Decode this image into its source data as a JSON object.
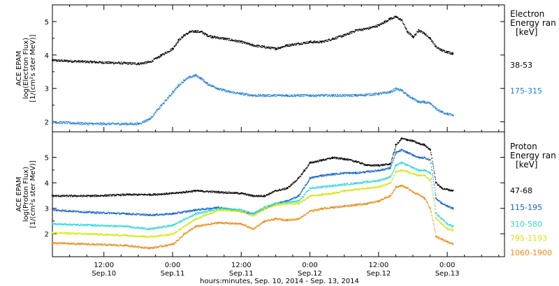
{
  "colors": {
    "c38_53": "#000000",
    "c175_315": "#1f7fd6",
    "c47_68": "#000000",
    "c115_195": "#1060cc",
    "c310_580": "#30d8d8",
    "c795_1193": "#d4e810",
    "c1060_1900": "#ee8a14"
  },
  "x_axis": {
    "label": "hours:minutes, Sep. 10, 2014 - Sep. 13, 2014",
    "ticks": [
      {
        "t": 12,
        "time": "12:00",
        "date": "Sep.10"
      },
      {
        "t": 24,
        "time": "0:00",
        "date": "Sep.11"
      },
      {
        "t": 36,
        "time": "12:00",
        "date": "Sep.11"
      },
      {
        "t": 48,
        "time": "0:00",
        "date": "Sep.12"
      },
      {
        "t": 60,
        "time": "12:00",
        "date": "Sep.12"
      },
      {
        "t": 72,
        "time": "0:00",
        "date": "Sep.13"
      }
    ]
  },
  "chart_data": [
    {
      "type": "scatter",
      "xlim": [
        3,
        82
      ],
      "ylim": [
        1.7,
        5.5
      ],
      "yticks": [
        2,
        3,
        4,
        5
      ],
      "ylabel": [
        "ACE EPAM",
        "log(Electron Flux)",
        "[1/(cm²s ster MeV)]"
      ],
      "legend_title": [
        "Electron",
        "Energy ran",
        "[keV]"
      ],
      "series": [
        {
          "name": "38-53",
          "color_key": "c38_53",
          "x": [
            3,
            10,
            18,
            20,
            22,
            24,
            25,
            26,
            27,
            28,
            29,
            30,
            31,
            33,
            36,
            38,
            40,
            42,
            44,
            46,
            48,
            50,
            52,
            54,
            56,
            58,
            60,
            61,
            62,
            63,
            64,
            65,
            66,
            67,
            68,
            69,
            70,
            71,
            72,
            73
          ],
          "y": [
            3.85,
            3.8,
            3.75,
            3.8,
            4.0,
            4.2,
            4.45,
            4.6,
            4.7,
            4.72,
            4.7,
            4.6,
            4.55,
            4.5,
            4.4,
            4.3,
            4.25,
            4.2,
            4.3,
            4.35,
            4.4,
            4.4,
            4.5,
            4.6,
            4.75,
            4.8,
            4.9,
            5.0,
            5.1,
            5.15,
            5.05,
            4.7,
            4.55,
            4.75,
            4.65,
            4.5,
            4.25,
            4.15,
            4.1,
            4.05
          ]
        },
        {
          "name": "175-315",
          "color_key": "c175_315",
          "x": [
            3,
            10,
            18,
            20,
            22,
            24,
            25,
            26,
            27,
            28,
            29,
            30,
            32,
            34,
            36,
            38,
            40,
            44,
            48,
            52,
            56,
            60,
            62,
            63,
            64,
            65,
            66,
            67,
            68,
            69,
            70,
            71,
            72,
            73
          ],
          "y": [
            2.0,
            1.95,
            1.95,
            2.1,
            2.5,
            2.9,
            3.1,
            3.25,
            3.35,
            3.4,
            3.3,
            3.15,
            3.0,
            2.9,
            2.85,
            2.8,
            2.8,
            2.8,
            2.8,
            2.8,
            2.8,
            2.85,
            2.9,
            3.0,
            2.95,
            2.8,
            2.7,
            2.6,
            2.6,
            2.55,
            2.4,
            2.3,
            2.25,
            2.2
          ]
        }
      ],
      "series_labels": [
        "38-53",
        "175-315"
      ]
    },
    {
      "type": "scatter",
      "xlim": [
        3,
        82
      ],
      "ylim": [
        1.1,
        6.0
      ],
      "yticks": [
        2,
        3,
        4,
        5
      ],
      "ylabel": [
        "ACE EPAM",
        "log(Proton Flux)",
        "[1/(cm²s ster MeV)]"
      ],
      "legend_title": [
        "Proton",
        "Energy ran",
        "[keV]"
      ],
      "series": [
        {
          "name": "47-68",
          "color_key": "c47_68",
          "x": [
            3,
            10,
            16,
            20,
            24,
            28,
            32,
            36,
            38,
            40,
            42,
            44,
            46,
            47,
            48,
            50,
            52,
            54,
            56,
            58,
            60,
            62,
            63,
            64,
            65,
            66,
            67,
            68,
            69,
            70,
            71,
            72,
            73
          ],
          "y": [
            3.5,
            3.5,
            3.55,
            3.55,
            3.6,
            3.7,
            3.65,
            3.6,
            3.5,
            3.5,
            3.7,
            3.8,
            4.2,
            4.5,
            4.8,
            4.9,
            5.0,
            4.95,
            4.85,
            4.7,
            4.7,
            4.75,
            5.5,
            5.75,
            5.7,
            5.65,
            5.55,
            5.5,
            5.3,
            4.0,
            3.8,
            3.75,
            3.7
          ]
        },
        {
          "name": "115-195",
          "color_key": "c115_195",
          "x": [
            3,
            10,
            16,
            20,
            24,
            28,
            32,
            36,
            38,
            40,
            42,
            44,
            46,
            48,
            50,
            52,
            54,
            56,
            58,
            60,
            62,
            63,
            64,
            65,
            66,
            67,
            68,
            69,
            70,
            71,
            72,
            73
          ],
          "y": [
            2.95,
            2.85,
            2.8,
            2.75,
            2.8,
            2.95,
            3.05,
            2.9,
            2.8,
            3.0,
            3.2,
            3.3,
            3.5,
            4.2,
            4.3,
            4.35,
            4.4,
            4.4,
            4.45,
            4.5,
            4.6,
            5.2,
            5.3,
            5.2,
            5.1,
            5.0,
            5.0,
            4.9,
            3.4,
            3.2,
            3.1,
            3.0
          ]
        },
        {
          "name": "310-580",
          "color_key": "c310_580",
          "x": [
            3,
            10,
            16,
            20,
            24,
            28,
            32,
            36,
            38,
            40,
            42,
            44,
            46,
            48,
            50,
            52,
            54,
            56,
            58,
            60,
            62,
            63,
            64,
            65,
            66,
            67,
            68,
            69,
            70,
            71,
            72,
            73
          ],
          "y": [
            2.4,
            2.35,
            2.3,
            2.2,
            2.35,
            2.8,
            3.0,
            2.95,
            2.8,
            3.05,
            3.2,
            3.25,
            3.3,
            3.8,
            3.85,
            3.9,
            3.95,
            4.0,
            4.05,
            4.1,
            4.25,
            4.7,
            4.8,
            4.7,
            4.6,
            4.5,
            4.5,
            4.4,
            2.8,
            2.6,
            2.4,
            2.3
          ]
        },
        {
          "name": "795-1193",
          "color_key": "c795_1193",
          "x": [
            3,
            10,
            16,
            20,
            24,
            28,
            32,
            36,
            38,
            40,
            42,
            44,
            46,
            48,
            50,
            52,
            54,
            56,
            58,
            60,
            62,
            63,
            64,
            65,
            66,
            67,
            68,
            69,
            70,
            71,
            72,
            73
          ],
          "y": [
            2.05,
            2.0,
            1.95,
            1.9,
            2.0,
            2.6,
            2.95,
            2.9,
            2.7,
            3.0,
            3.15,
            3.2,
            3.2,
            3.5,
            3.55,
            3.6,
            3.7,
            3.75,
            3.8,
            3.85,
            4.0,
            4.45,
            4.5,
            4.45,
            4.35,
            4.3,
            4.3,
            4.1,
            2.6,
            2.4,
            2.2,
            2.15
          ]
        },
        {
          "name": "1060-1900",
          "color_key": "c1060_1900",
          "x": [
            3,
            10,
            16,
            20,
            24,
            26,
            28,
            32,
            36,
            38,
            40,
            42,
            44,
            46,
            48,
            50,
            52,
            54,
            56,
            58,
            60,
            62,
            63,
            64,
            65,
            66,
            67,
            68,
            69,
            70,
            71,
            72,
            73
          ],
          "y": [
            1.65,
            1.6,
            1.55,
            1.45,
            1.6,
            2.0,
            2.3,
            2.45,
            2.4,
            2.2,
            2.5,
            2.6,
            2.55,
            2.6,
            2.9,
            3.0,
            3.05,
            3.1,
            3.15,
            3.2,
            3.3,
            3.5,
            3.85,
            3.9,
            3.8,
            3.65,
            3.55,
            3.4,
            3.0,
            1.9,
            1.8,
            1.7,
            1.6
          ]
        }
      ],
      "series_labels": [
        "47-68",
        "115-195",
        "310-580",
        "795-1193",
        "1060-1900"
      ]
    }
  ]
}
